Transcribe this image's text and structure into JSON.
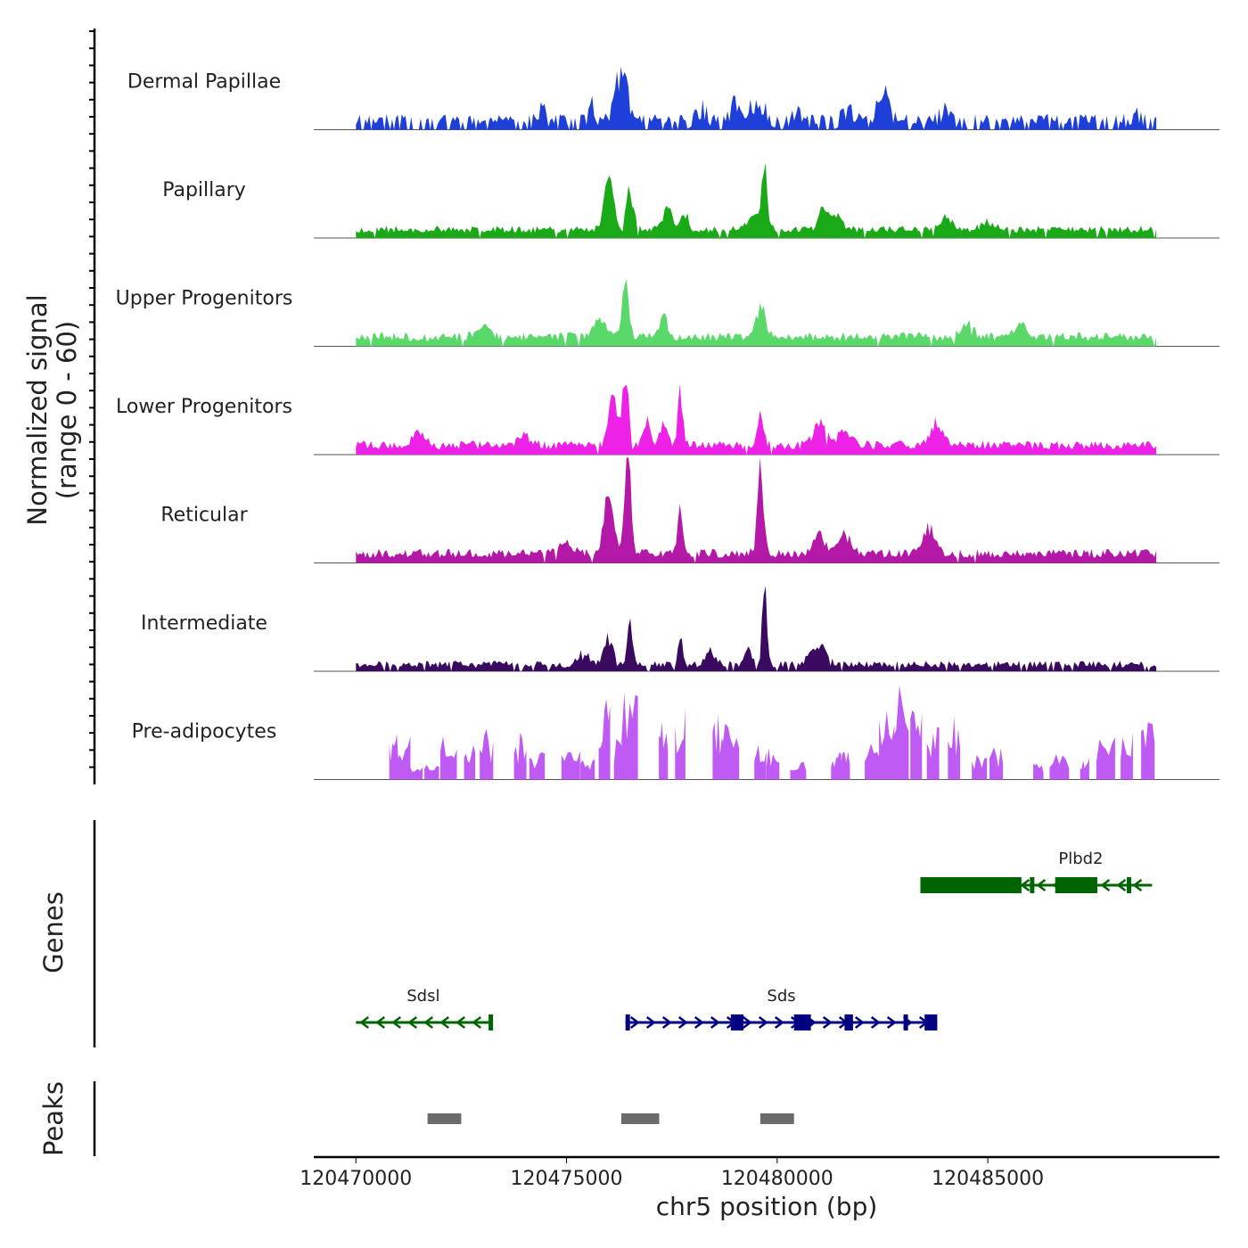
{
  "chart_data": {
    "type": "area",
    "title": "",
    "xlabel": "chr5 position (bp)",
    "ylabel_line1": "Normalized signal",
    "ylabel_line2": "(range 0 - 60)",
    "genes_label": "Genes",
    "peaks_label": "Peaks",
    "xlim": [
      120469000,
      120490500
    ],
    "x_ticks": [
      120470000,
      120475000,
      120480000,
      120485000
    ],
    "x_tick_labels": [
      "120470000",
      "120475000",
      "120480000",
      "120485000"
    ],
    "ylim": [
      0,
      60
    ],
    "data_range": [
      120470000,
      120489000
    ],
    "series": [
      {
        "name": "Dermal Papillae",
        "color": "#1f40d8",
        "base": 3,
        "noise": 6,
        "sparsity": 0.35,
        "peaks": [
          [
            120476200,
            22,
            150
          ],
          [
            120476400,
            26,
            120
          ],
          [
            120475600,
            10,
            120
          ],
          [
            120474400,
            8,
            150
          ],
          [
            120478200,
            8,
            200
          ],
          [
            120479000,
            10,
            150
          ],
          [
            120479500,
            12,
            300
          ],
          [
            120480500,
            6,
            200
          ],
          [
            120481700,
            8,
            200
          ],
          [
            120482500,
            20,
            200
          ],
          [
            120484000,
            6,
            200
          ],
          [
            120488500,
            5,
            200
          ]
        ]
      },
      {
        "name": "Papillary",
        "color": "#1aaa18",
        "base": 3,
        "noise": 4,
        "sparsity": 0.05,
        "peaks": [
          [
            120476000,
            32,
            150
          ],
          [
            120476500,
            22,
            120
          ],
          [
            120477400,
            15,
            150
          ],
          [
            120477800,
            10,
            120
          ],
          [
            120479500,
            10,
            200
          ],
          [
            120479700,
            38,
            80
          ],
          [
            120481100,
            14,
            150
          ],
          [
            120481400,
            10,
            150
          ],
          [
            120484000,
            8,
            200
          ],
          [
            120485000,
            5,
            200
          ]
        ]
      },
      {
        "name": "Upper Progenitors",
        "color": "#5ad86a",
        "base": 3,
        "noise": 5,
        "sparsity": 0.02,
        "peaks": [
          [
            120476400,
            38,
            100
          ],
          [
            120475800,
            12,
            200
          ],
          [
            120477300,
            14,
            120
          ],
          [
            120479600,
            18,
            160
          ],
          [
            120473000,
            6,
            200
          ],
          [
            120484500,
            8,
            200
          ],
          [
            120485800,
            8,
            200
          ]
        ]
      },
      {
        "name": "Lower Progenitors",
        "color": "#ee22e6",
        "base": 3,
        "noise": 5,
        "sparsity": 0.02,
        "peaks": [
          [
            120476100,
            30,
            140
          ],
          [
            120476400,
            46,
            100
          ],
          [
            120476900,
            15,
            120
          ],
          [
            120477300,
            14,
            120
          ],
          [
            120477700,
            33,
            80
          ],
          [
            120479600,
            20,
            100
          ],
          [
            120481000,
            14,
            200
          ],
          [
            120481600,
            10,
            200
          ],
          [
            120483800,
            14,
            200
          ],
          [
            120471500,
            8,
            200
          ],
          [
            120474000,
            6,
            200
          ]
        ]
      },
      {
        "name": "Reticular",
        "color": "#b318a6",
        "base": 3,
        "noise": 5,
        "sparsity": 0.02,
        "peaks": [
          [
            120476000,
            38,
            160
          ],
          [
            120476450,
            72,
            100
          ],
          [
            120477700,
            30,
            80
          ],
          [
            120479600,
            50,
            110
          ],
          [
            120481000,
            14,
            150
          ],
          [
            120481600,
            12,
            200
          ],
          [
            120483600,
            14,
            200
          ],
          [
            120475000,
            6,
            200
          ]
        ]
      },
      {
        "name": "Intermediate",
        "color": "#3a0a60",
        "base": 2,
        "noise": 4,
        "sparsity": 0.08,
        "peaks": [
          [
            120476000,
            18,
            150
          ],
          [
            120476500,
            24,
            100
          ],
          [
            120477700,
            18,
            80
          ],
          [
            120478400,
            8,
            150
          ],
          [
            120479300,
            12,
            120
          ],
          [
            120479700,
            52,
            70
          ],
          [
            120480800,
            8,
            200
          ],
          [
            120481100,
            10,
            150
          ],
          [
            120475400,
            8,
            150
          ]
        ]
      }
    ],
    "pre_adipocytes": {
      "name": "Pre-adipocytes",
      "color": "#c05af4",
      "spikes": [
        [
          120470900,
          32
        ],
        [
          120471100,
          30
        ],
        [
          120471400,
          10
        ],
        [
          120471800,
          10
        ],
        [
          120472200,
          30
        ],
        [
          120472700,
          25
        ],
        [
          120473100,
          30
        ],
        [
          120473900,
          28
        ],
        [
          120474300,
          20
        ],
        [
          120475100,
          25
        ],
        [
          120475500,
          14
        ],
        [
          120475900,
          55
        ],
        [
          120476500,
          65
        ],
        [
          120476300,
          30
        ],
        [
          120477300,
          40
        ],
        [
          120477700,
          50
        ],
        [
          120478600,
          40
        ],
        [
          120478900,
          42
        ],
        [
          120479600,
          25
        ],
        [
          120479900,
          25
        ],
        [
          120480500,
          15
        ],
        [
          120481400,
          20
        ],
        [
          120481600,
          20
        ],
        [
          120482300,
          25
        ],
        [
          120482600,
          45
        ],
        [
          120482900,
          55
        ],
        [
          120483300,
          50
        ],
        [
          120483700,
          40
        ],
        [
          120484200,
          38
        ],
        [
          120484800,
          20
        ],
        [
          120485200,
          22
        ],
        [
          120486200,
          12
        ],
        [
          120486700,
          20
        ],
        [
          120487300,
          15
        ],
        [
          120487800,
          30
        ],
        [
          120488300,
          35
        ],
        [
          120488800,
          40
        ]
      ]
    },
    "genes": [
      {
        "name": "Plbd2",
        "strand": "-",
        "color": "#006400",
        "start": 120483400,
        "end": 120488900,
        "row": 0,
        "exons": [
          [
            120483400,
            120485800
          ],
          [
            120486000,
            120486100
          ],
          [
            120486600,
            120487600
          ],
          [
            120488300,
            120488400
          ]
        ]
      },
      {
        "name": "Sdsl",
        "strand": "-",
        "color": "#006400",
        "start": 120470000,
        "end": 120473200,
        "row": 1,
        "exons": [
          [
            120473150,
            120473200
          ]
        ]
      },
      {
        "name": "Sds",
        "strand": "+",
        "color": "#000080",
        "start": 120476400,
        "end": 120483800,
        "row": 1,
        "exons": [
          [
            120476400,
            120476500
          ],
          [
            120478900,
            120479200
          ],
          [
            120480400,
            120480800
          ],
          [
            120481600,
            120481800
          ],
          [
            120483000,
            120483100
          ],
          [
            120483500,
            120483800
          ]
        ]
      }
    ],
    "peaks": [
      [
        120471700,
        120472500
      ],
      [
        120476300,
        120477200
      ],
      [
        120479600,
        120480400
      ]
    ]
  }
}
